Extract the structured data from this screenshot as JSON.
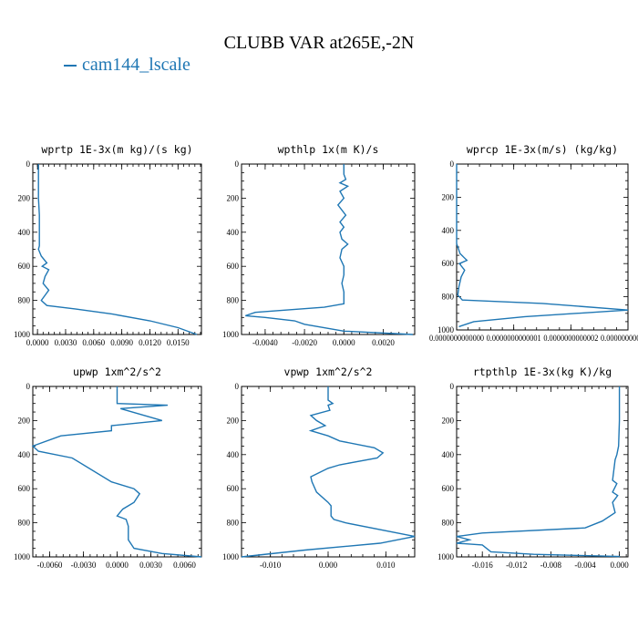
{
  "figure": {
    "title": "CLUBB VAR at265E,-2N",
    "legend": [
      "cam144_lscale"
    ],
    "line_color": "#1f77b4"
  },
  "chart_data": [
    {
      "type": "line",
      "title": "wprtp  1E-3x(m kg)/(s kg)",
      "xlim": [
        -0.0005,
        0.0175
      ],
      "ylim": [
        1000,
        0
      ],
      "xticks": [
        "0.0000",
        "0.0030",
        "0.0060",
        "0.0090",
        "0.0120",
        "0.0150"
      ],
      "xtick_values": [
        0.0,
        0.003,
        0.006,
        0.009,
        0.012,
        0.015
      ],
      "yticks": [
        "0",
        "200",
        "400",
        "600",
        "800",
        "1000"
      ],
      "ytick_values": [
        0,
        200,
        400,
        600,
        800,
        1000
      ],
      "series": [
        {
          "name": "cam144_lscale",
          "x": [
            0.0001,
            0.0001,
            0.0001,
            0.0002,
            0.0002,
            0.0002,
            0.0001,
            0.0004,
            0.001,
            0.0005,
            0.0012,
            0.0008,
            0.0006,
            0.0012,
            0.0004,
            0.001,
            0.004,
            0.008,
            0.012,
            0.015,
            0.017
          ],
          "y": [
            0,
            100,
            200,
            300,
            400,
            480,
            500,
            540,
            580,
            600,
            620,
            660,
            700,
            740,
            800,
            830,
            850,
            880,
            920,
            960,
            1000
          ]
        }
      ]
    },
    {
      "type": "line",
      "title": "wpthlp  1x(m K)/s",
      "xlim": [
        -0.0052,
        0.0036
      ],
      "ylim": [
        1000,
        0
      ],
      "xticks": [
        "-0.0040",
        "-0.0020",
        "0.0000",
        "0.0020"
      ],
      "xtick_values": [
        -0.004,
        -0.002,
        0.0,
        0.002
      ],
      "yticks": [
        "0",
        "200",
        "400",
        "600",
        "800",
        "1000"
      ],
      "ytick_values": [
        0,
        200,
        400,
        600,
        800,
        1000
      ],
      "series": [
        {
          "name": "cam144_lscale",
          "x": [
            0.0,
            0.0,
            0.0001,
            -0.0002,
            0.0002,
            -0.0002,
            0.0,
            -0.0003,
            0.0001,
            -0.0002,
            0.0,
            -0.0002,
            -0.0001,
            0.0002,
            -0.0001,
            -0.0002,
            0.0,
            0.0,
            -0.0001,
            0.0,
            0.0,
            -0.001,
            -0.0045,
            -0.005,
            -0.004,
            -0.0025,
            -0.002,
            0.0,
            0.0035
          ],
          "y": [
            0,
            60,
            90,
            110,
            130,
            160,
            200,
            240,
            300,
            340,
            370,
            400,
            440,
            470,
            500,
            550,
            600,
            650,
            700,
            750,
            820,
            840,
            870,
            890,
            900,
            920,
            940,
            980,
            1000
          ]
        }
      ]
    },
    {
      "type": "line",
      "title": "wprcp  1E-3x(m/s) (kg/kg)",
      "xlim": [
        0.0,
        3e-13
      ],
      "ylim": [
        1000,
        0
      ],
      "xticks": [
        "0.0000000000000",
        "0.0000000000001",
        "0.0000000000002",
        "0.0000000000003"
      ],
      "xtick_values": [
        0.0,
        1e-13,
        2e-13,
        3e-13
      ],
      "yticks": [
        "0",
        "200",
        "400",
        "600",
        "800",
        "1000"
      ],
      "ytick_values": [
        0,
        200,
        400,
        600,
        800,
        1000
      ],
      "series": [
        {
          "name": "cam144_lscale",
          "x": [
            0.0,
            0.0,
            0.0,
            0.0,
            2e-15,
            6e-15,
            1.8e-14,
            5e-15,
            1.4e-14,
            8e-15,
            4e-15,
            2e-15,
            1e-14,
            1.5e-13,
            3e-13,
            1.2e-13,
            3e-14,
            4e-15
          ],
          "y": [
            0,
            200,
            400,
            480,
            500,
            540,
            580,
            600,
            640,
            680,
            740,
            790,
            820,
            840,
            880,
            920,
            950,
            980
          ]
        }
      ]
    },
    {
      "type": "line",
      "title": "upwp  1xm^2/s^2",
      "xlim": [
        -0.0075,
        0.0075
      ],
      "ylim": [
        1000,
        0
      ],
      "xticks": [
        "-0.0060",
        "-0.0030",
        "0.0000",
        "0.0030",
        "0.0060"
      ],
      "xtick_values": [
        -0.006,
        -0.003,
        0.0,
        0.003,
        0.006
      ],
      "yticks": [
        "0",
        "200",
        "400",
        "600",
        "800",
        "1000"
      ],
      "ytick_values": [
        0,
        200,
        400,
        600,
        800,
        1000
      ],
      "series": [
        {
          "name": "cam144_lscale",
          "x": [
            0.0,
            0.0,
            0.0045,
            0.0003,
            0.004,
            -0.0005,
            -0.0005,
            -0.005,
            -0.0075,
            -0.007,
            -0.004,
            -0.0005,
            0.0015,
            0.002,
            0.0015,
            0.0005,
            0.0,
            0.0008,
            0.001,
            0.001,
            0.0015,
            0.004,
            0.0075
          ],
          "y": [
            0,
            100,
            110,
            130,
            200,
            230,
            260,
            290,
            350,
            380,
            420,
            560,
            600,
            630,
            680,
            720,
            760,
            780,
            820,
            900,
            950,
            980,
            1000
          ]
        }
      ]
    },
    {
      "type": "line",
      "title": "vpwp  1xm^2/s^2",
      "xlim": [
        -0.015,
        0.015
      ],
      "ylim": [
        1000,
        0
      ],
      "xticks": [
        "-0.010",
        "0.000",
        "0.010"
      ],
      "xtick_values": [
        -0.01,
        0.0,
        0.01
      ],
      "yticks": [
        "0",
        "200",
        "400",
        "600",
        "800",
        "1000"
      ],
      "ytick_values": [
        0,
        200,
        400,
        600,
        800,
        1000
      ],
      "series": [
        {
          "name": "cam144_lscale",
          "x": [
            0.0,
            0.0,
            0.0008,
            0.0,
            0.0003,
            -0.003,
            -0.002,
            -0.0005,
            -0.003,
            0.0,
            0.002,
            0.008,
            0.0095,
            0.0085,
            0.002,
            0.0,
            -0.003,
            -0.0028,
            -0.002,
            0.0,
            0.0005,
            0.0005,
            0.001,
            0.003,
            0.012,
            0.015,
            0.009,
            -0.004,
            -0.015
          ],
          "y": [
            0,
            80,
            100,
            110,
            140,
            170,
            200,
            230,
            260,
            290,
            320,
            360,
            390,
            420,
            460,
            480,
            530,
            560,
            620,
            680,
            700,
            760,
            780,
            800,
            860,
            880,
            920,
            960,
            1000
          ]
        }
      ]
    },
    {
      "type": "line",
      "title": "rtpthlp  1E-3x(kg K)/kg",
      "xlim": [
        -0.019,
        0.001
      ],
      "ylim": [
        1000,
        0
      ],
      "xticks": [
        "-0.016",
        "-0.012",
        "-0.008",
        "-0.004",
        "0.000"
      ],
      "xtick_values": [
        -0.016,
        -0.012,
        -0.008,
        -0.004,
        0.0
      ],
      "yticks": [
        "0",
        "200",
        "400",
        "600",
        "800",
        "1000"
      ],
      "ytick_values": [
        0,
        200,
        400,
        600,
        800,
        1000
      ],
      "series": [
        {
          "name": "cam144_lscale",
          "x": [
            0.0,
            0.0,
            -0.0001,
            -0.0003,
            -0.0005,
            -0.0008,
            -0.0003,
            -0.0008,
            -0.0002,
            -0.0008,
            -0.0005,
            -0.002,
            -0.004,
            -0.016,
            -0.019,
            -0.0175,
            -0.019,
            -0.016,
            -0.015,
            -0.01,
            -0.002,
            0.0,
            0.0
          ],
          "y": [
            0,
            200,
            350,
            400,
            430,
            550,
            570,
            620,
            640,
            680,
            740,
            790,
            830,
            860,
            880,
            900,
            920,
            930,
            970,
            985,
            995,
            998,
            1000
          ]
        }
      ]
    }
  ]
}
